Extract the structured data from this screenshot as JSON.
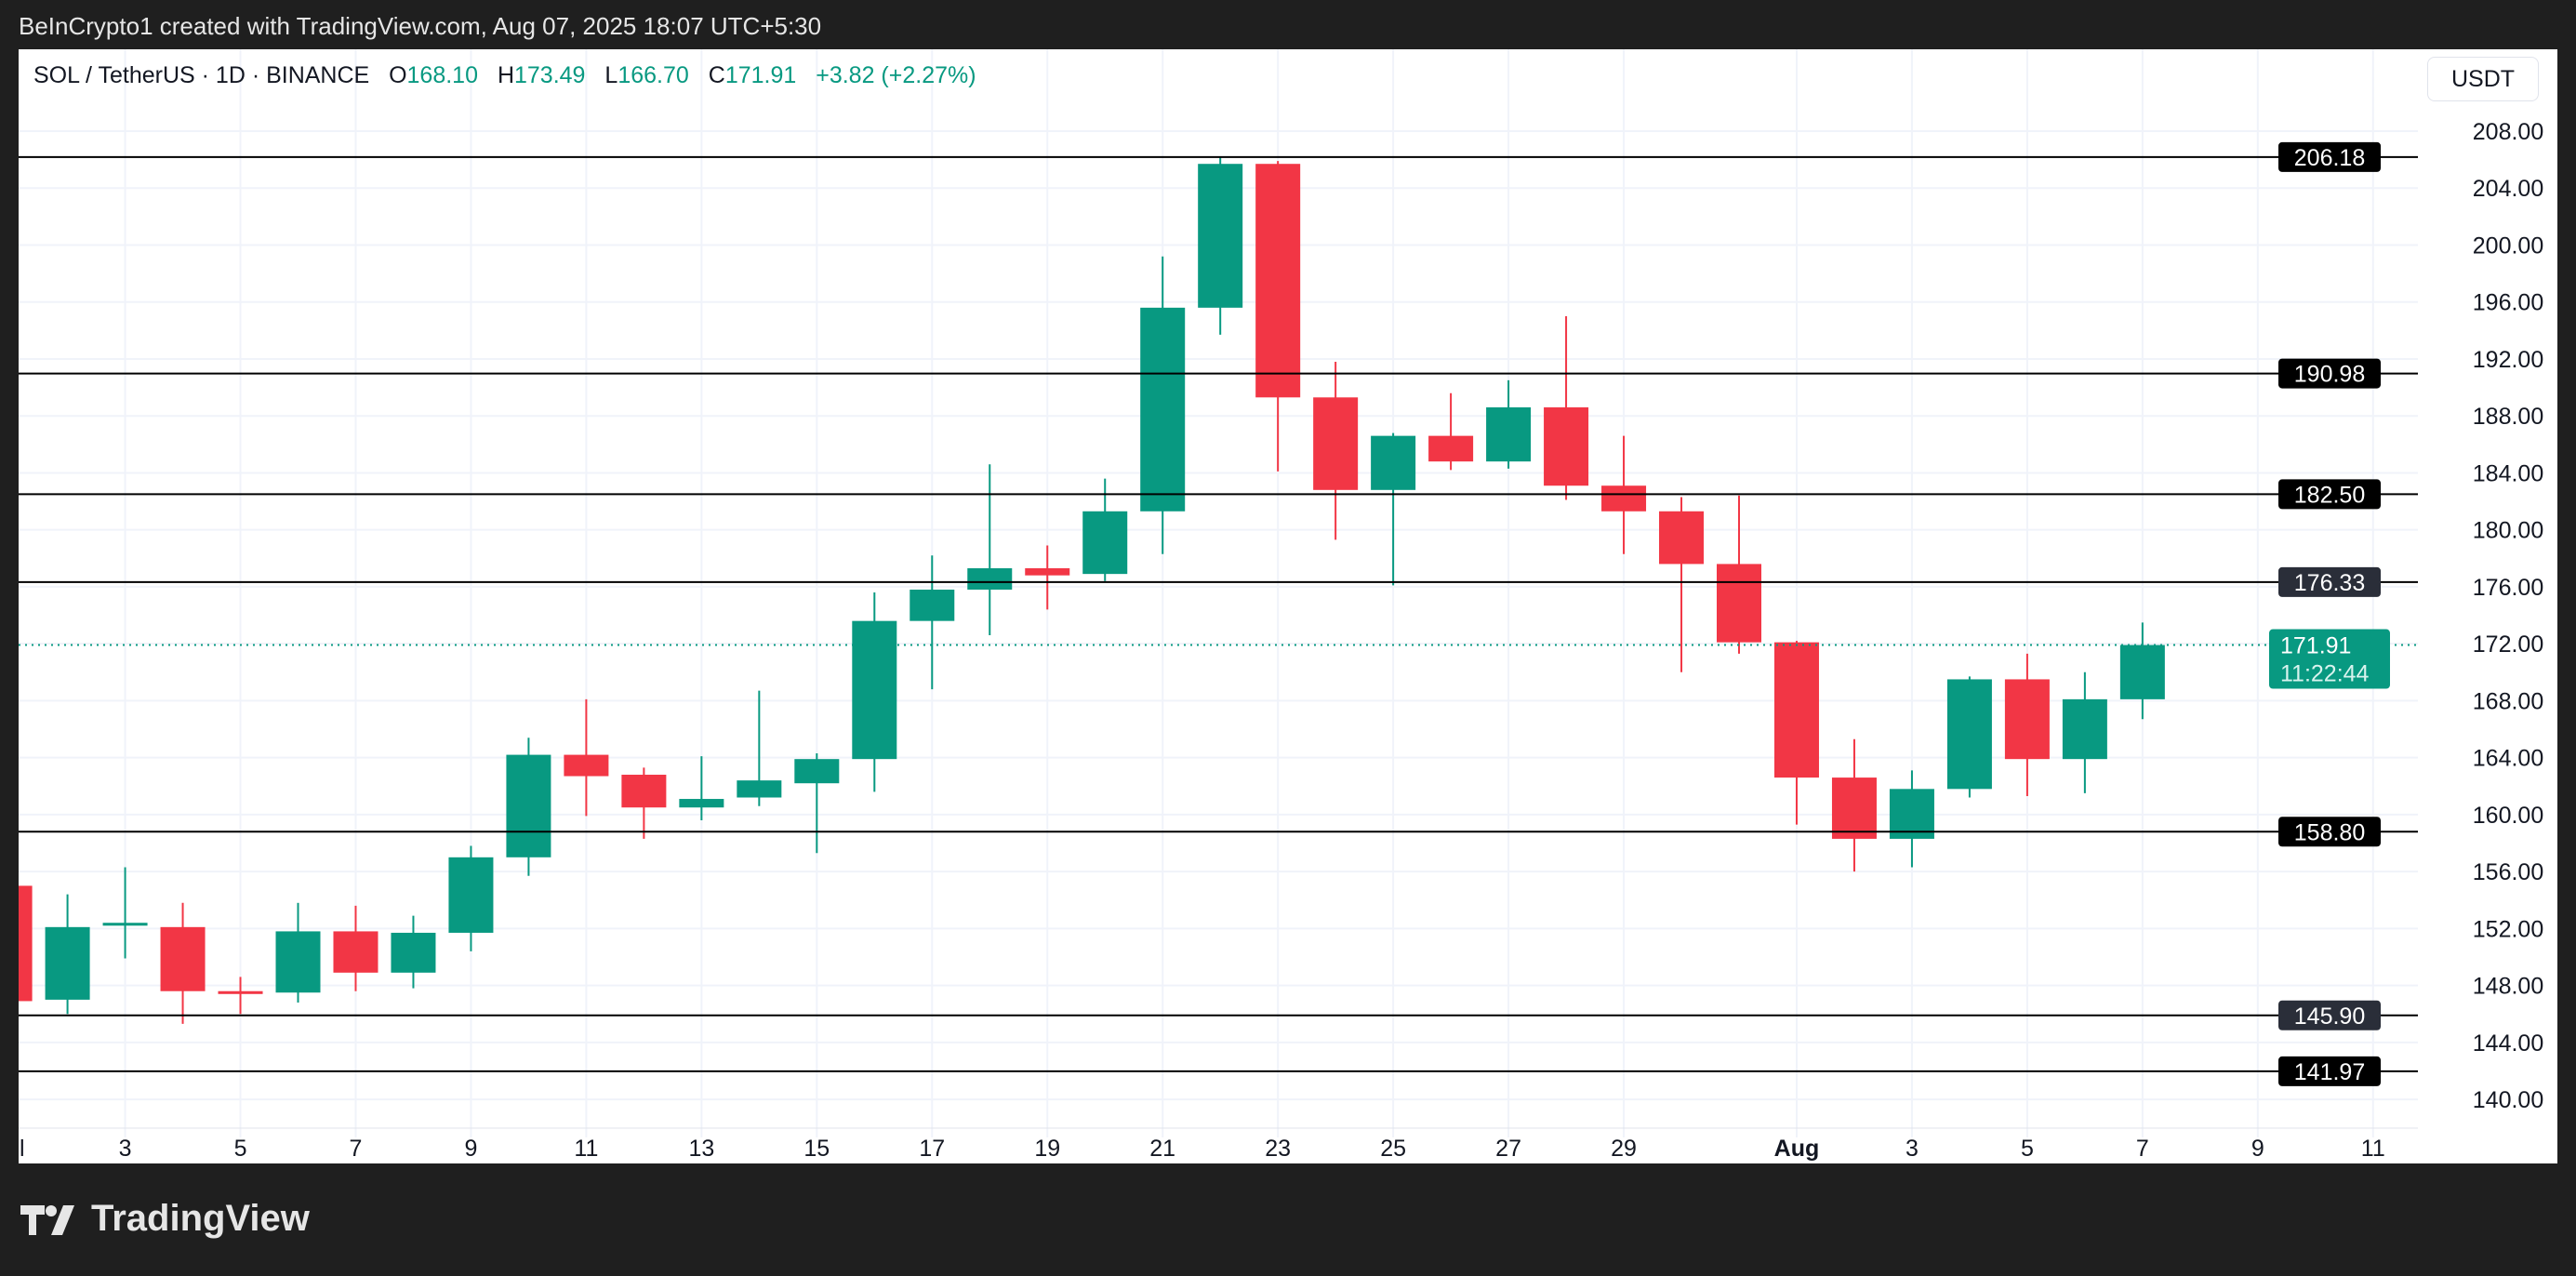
{
  "header": {
    "credit": "BeInCrypto1 created with TradingView.com, Aug 07, 2025 18:07 UTC+5:30"
  },
  "legend": {
    "symbol": "SOL / TetherUS · 1D · BINANCE",
    "o_label": "O",
    "o": "168.10",
    "h_label": "H",
    "h": "173.49",
    "l_label": "L",
    "l": "166.70",
    "c_label": "C",
    "c": "171.91",
    "change": "+3.82 (+2.27%)"
  },
  "currency_button": "USDT",
  "footer": {
    "brand": "TradingView"
  },
  "colors": {
    "up": "#089981",
    "down": "#f23645",
    "level_line": "#000000",
    "grid": "#f0f3fa"
  },
  "chart_data": {
    "type": "candlestick",
    "ylim": [
      138,
      210
    ],
    "y_ticks": [
      "140.00",
      "144.00",
      "148.00",
      "152.00",
      "156.00",
      "160.00",
      "164.00",
      "168.00",
      "172.00",
      "176.00",
      "180.00",
      "184.00",
      "188.00",
      "192.00",
      "196.00",
      "200.00",
      "204.00",
      "208.00"
    ],
    "x_ticks": [
      {
        "day": 0,
        "label": "Jul"
      },
      {
        "day": 2,
        "label": "3"
      },
      {
        "day": 4,
        "label": "5"
      },
      {
        "day": 6,
        "label": "7"
      },
      {
        "day": 8,
        "label": "9"
      },
      {
        "day": 10,
        "label": "11"
      },
      {
        "day": 12,
        "label": "13"
      },
      {
        "day": 14,
        "label": "15"
      },
      {
        "day": 16,
        "label": "17"
      },
      {
        "day": 18,
        "label": "19"
      },
      {
        "day": 20,
        "label": "21"
      },
      {
        "day": 22,
        "label": "23"
      },
      {
        "day": 24,
        "label": "25"
      },
      {
        "day": 26,
        "label": "27"
      },
      {
        "day": 28,
        "label": "29"
      },
      {
        "day": 31,
        "label": "Aug"
      },
      {
        "day": 33,
        "label": "3"
      },
      {
        "day": 35,
        "label": "5"
      },
      {
        "day": 37,
        "label": "7"
      },
      {
        "day": 39,
        "label": "9"
      },
      {
        "day": 41,
        "label": "11"
      }
    ],
    "candles": [
      {
        "date": "2025-07-01",
        "o": 155.0,
        "h": 155.2,
        "l": 146.5,
        "c": 146.9
      },
      {
        "date": "2025-07-02",
        "o": 147.0,
        "h": 154.4,
        "l": 146.0,
        "c": 152.1
      },
      {
        "date": "2025-07-03",
        "o": 152.2,
        "h": 156.3,
        "l": 149.9,
        "c": 152.4
      },
      {
        "date": "2025-07-04",
        "o": 152.1,
        "h": 153.8,
        "l": 145.3,
        "c": 147.6
      },
      {
        "date": "2025-07-05",
        "o": 147.6,
        "h": 148.6,
        "l": 146.0,
        "c": 147.4
      },
      {
        "date": "2025-07-06",
        "o": 147.5,
        "h": 153.8,
        "l": 146.8,
        "c": 151.8
      },
      {
        "date": "2025-07-07",
        "o": 151.8,
        "h": 153.6,
        "l": 147.6,
        "c": 148.9
      },
      {
        "date": "2025-07-08",
        "o": 148.9,
        "h": 152.9,
        "l": 147.8,
        "c": 151.7
      },
      {
        "date": "2025-07-09",
        "o": 151.7,
        "h": 157.8,
        "l": 150.4,
        "c": 157.0
      },
      {
        "date": "2025-07-10",
        "o": 157.0,
        "h": 165.4,
        "l": 155.7,
        "c": 164.2
      },
      {
        "date": "2025-07-11",
        "o": 164.2,
        "h": 168.1,
        "l": 159.9,
        "c": 162.7
      },
      {
        "date": "2025-07-12",
        "o": 162.8,
        "h": 163.3,
        "l": 158.3,
        "c": 160.5
      },
      {
        "date": "2025-07-13",
        "o": 160.5,
        "h": 164.1,
        "l": 159.6,
        "c": 161.1
      },
      {
        "date": "2025-07-14",
        "o": 161.2,
        "h": 168.7,
        "l": 160.6,
        "c": 162.4
      },
      {
        "date": "2025-07-15",
        "o": 162.2,
        "h": 164.3,
        "l": 157.3,
        "c": 163.9
      },
      {
        "date": "2025-07-16",
        "o": 163.9,
        "h": 175.6,
        "l": 161.6,
        "c": 173.6
      },
      {
        "date": "2025-07-17",
        "o": 173.6,
        "h": 178.2,
        "l": 168.8,
        "c": 175.8
      },
      {
        "date": "2025-07-18",
        "o": 175.8,
        "h": 184.6,
        "l": 172.6,
        "c": 177.3
      },
      {
        "date": "2025-07-19",
        "o": 177.3,
        "h": 178.9,
        "l": 174.4,
        "c": 176.8
      },
      {
        "date": "2025-07-20",
        "o": 176.9,
        "h": 183.6,
        "l": 176.4,
        "c": 181.3
      },
      {
        "date": "2025-07-21",
        "o": 181.3,
        "h": 199.2,
        "l": 178.3,
        "c": 195.6
      },
      {
        "date": "2025-07-22",
        "o": 195.6,
        "h": 206.2,
        "l": 193.7,
        "c": 205.7
      },
      {
        "date": "2025-07-23",
        "o": 205.7,
        "h": 205.9,
        "l": 184.1,
        "c": 189.3
      },
      {
        "date": "2025-07-24",
        "o": 189.3,
        "h": 191.8,
        "l": 179.3,
        "c": 182.8
      },
      {
        "date": "2025-07-25",
        "o": 182.8,
        "h": 186.8,
        "l": 176.1,
        "c": 186.6
      },
      {
        "date": "2025-07-26",
        "o": 186.6,
        "h": 189.6,
        "l": 184.2,
        "c": 184.8
      },
      {
        "date": "2025-07-27",
        "o": 184.8,
        "h": 190.5,
        "l": 184.3,
        "c": 188.6
      },
      {
        "date": "2025-07-28",
        "o": 188.6,
        "h": 195.0,
        "l": 182.1,
        "c": 183.1
      },
      {
        "date": "2025-07-29",
        "o": 183.1,
        "h": 186.6,
        "l": 178.3,
        "c": 181.3
      },
      {
        "date": "2025-07-30",
        "o": 181.3,
        "h": 182.3,
        "l": 170.0,
        "c": 177.6
      },
      {
        "date": "2025-07-31",
        "o": 177.6,
        "h": 182.4,
        "l": 171.3,
        "c": 172.1
      },
      {
        "date": "2025-08-01",
        "o": 172.1,
        "h": 172.2,
        "l": 159.3,
        "c": 162.6
      },
      {
        "date": "2025-08-02",
        "o": 162.6,
        "h": 165.3,
        "l": 156.0,
        "c": 158.3
      },
      {
        "date": "2025-08-03",
        "o": 158.3,
        "h": 163.1,
        "l": 156.3,
        "c": 161.8
      },
      {
        "date": "2025-08-04",
        "o": 161.8,
        "h": 169.7,
        "l": 161.2,
        "c": 169.5
      },
      {
        "date": "2025-08-05",
        "o": 169.5,
        "h": 171.3,
        "l": 161.3,
        "c": 163.9
      },
      {
        "date": "2025-08-06",
        "o": 163.9,
        "h": 170.0,
        "l": 161.5,
        "c": 168.1
      },
      {
        "date": "2025-08-07",
        "o": 168.1,
        "h": 173.49,
        "l": 166.7,
        "c": 171.91
      }
    ],
    "levels": [
      {
        "price": 206.18,
        "label": "206.18",
        "style": "black"
      },
      {
        "price": 190.98,
        "label": "190.98",
        "style": "black"
      },
      {
        "price": 182.5,
        "label": "182.50",
        "style": "black"
      },
      {
        "price": 176.33,
        "label": "176.33",
        "style": "dark"
      },
      {
        "price": 158.8,
        "label": "158.80",
        "style": "black"
      },
      {
        "price": 145.9,
        "label": "145.90",
        "style": "dark"
      },
      {
        "price": 141.97,
        "label": "141.97",
        "style": "black"
      }
    ],
    "last_price": {
      "price": 171.91,
      "label": "171.91",
      "countdown": "11:22:44"
    }
  }
}
